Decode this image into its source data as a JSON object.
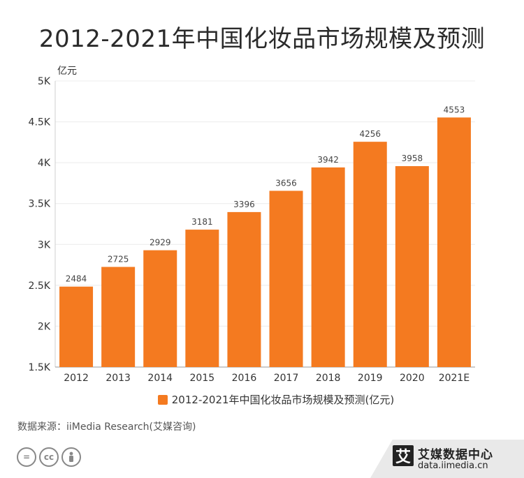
{
  "title": "2012-2021年中国化妆品市场规模及预测",
  "chart_data": {
    "type": "bar",
    "title": "2012-2021年中国化妆品市场规模及预测",
    "unit_label": "亿元",
    "categories": [
      "2012",
      "2013",
      "2014",
      "2015",
      "2016",
      "2017",
      "2018",
      "2019",
      "2020",
      "2021E"
    ],
    "series": [
      {
        "name": "2012-2021年中国化妆品市场规模及预测(亿元)",
        "values": [
          2484,
          2725,
          2929,
          3181,
          3396,
          3656,
          3942,
          4256,
          3958,
          4553
        ],
        "color": "#f47a20"
      }
    ],
    "ylim": [
      1500,
      5000
    ],
    "yticks": [
      1500,
      2000,
      2500,
      3000,
      3500,
      4000,
      4500,
      5000
    ],
    "ytick_labels": [
      "1.5K",
      "2K",
      "2.5K",
      "3K",
      "3.5K",
      "4K",
      "4.5K",
      "5K"
    ],
    "grid": true,
    "legend_position": "bottom"
  },
  "source": "数据来源：iiMedia Research(艾媒咨询)",
  "brand": {
    "logo_char": "艾",
    "name": "艾媒数据中心",
    "url": "data.iimedia.cn"
  },
  "license_icons": [
    "=",
    "cc",
    "person"
  ]
}
